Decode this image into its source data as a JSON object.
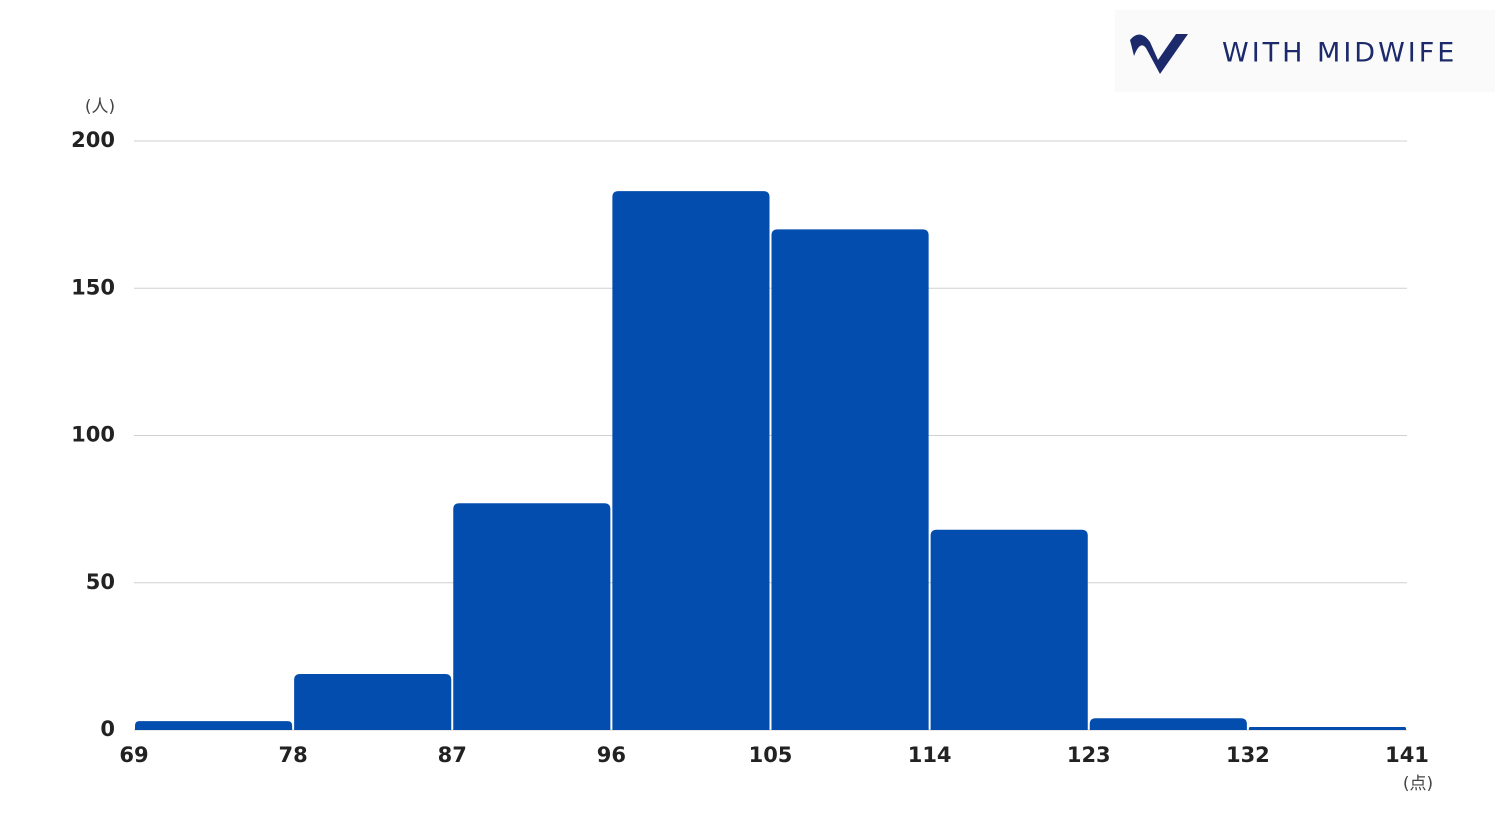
{
  "chart_data": {
    "type": "histogram",
    "logo_text": "WITH MIDWIFE",
    "y_unit_label": "(人)",
    "x_unit_label": "(点)",
    "bins": [
      69,
      78,
      87,
      96,
      105,
      114,
      123,
      132,
      141
    ],
    "values": [
      3,
      19,
      77,
      183,
      170,
      68,
      4,
      1
    ],
    "color": "#034dae",
    "xlim": [
      69,
      141
    ],
    "xticks": [
      69,
      78,
      87,
      96,
      105,
      114,
      123,
      132,
      141
    ],
    "ylim": [
      0,
      200
    ],
    "yticks": [
      0,
      50,
      100,
      150,
      200
    ],
    "grid": true
  }
}
